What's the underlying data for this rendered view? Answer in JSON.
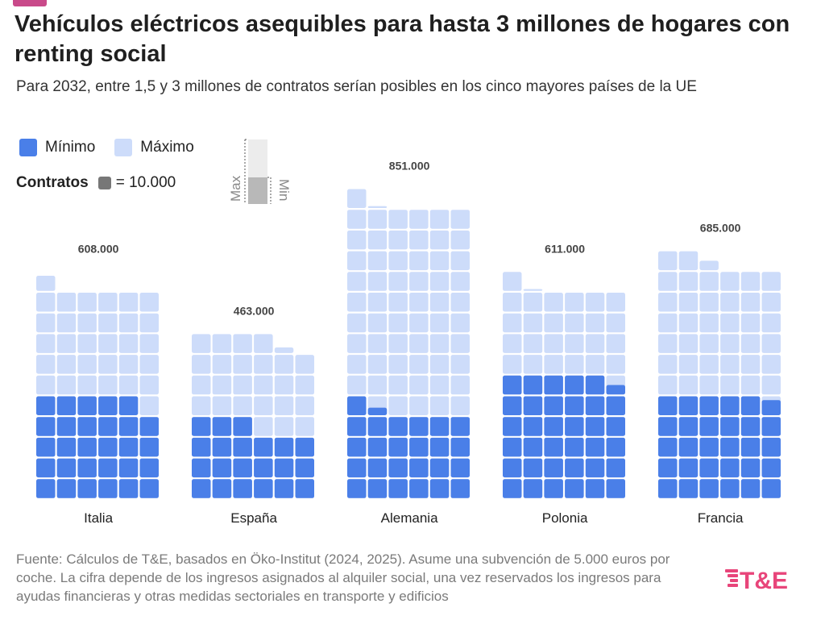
{
  "title": "Vehículos eléctricos asequibles para hasta 3 millones de hogares con renting social",
  "subtitle": "Para 2032, entre 1,5 y 3 millones de contratos serían posibles en los cinco mayores países de la UE",
  "legend": {
    "min_label": "Mínimo",
    "max_label": "Máximo"
  },
  "unit_note": {
    "label": "Contratos",
    "value": "= 10.000"
  },
  "key_labels": {
    "max": "Max",
    "min": "Min"
  },
  "source": "Fuente: Cálculos de T&E, basados en Öko-Institut (2024, 2025). Asume una subvención de 5.000 euros por coche. La cifra depende de los ingresos asignados al alquiler social, una vez reservados los ingresos para ayudas financieras y otras medidas sectoriales en transporte y edificios",
  "logo_text": "T&E",
  "colors": {
    "min": "#4a7fe8",
    "max": "#cddcfa",
    "accent": "#c94a8a",
    "logo": "#e8457a",
    "unit": "#777777"
  },
  "chart_data": {
    "type": "waffle",
    "unit": 10000,
    "categories": [
      "Italia",
      "España",
      "Alemania",
      "Polonia",
      "Francia"
    ],
    "series": [
      {
        "name": "Mínimo",
        "values": [
          290000,
          210000,
          254000,
          355000,
          298000
        ]
      },
      {
        "name": "Máximo",
        "values": [
          608000,
          463000,
          851000,
          611000,
          685000
        ]
      }
    ],
    "total_labels": [
      "608.000",
      "463.000",
      "851.000",
      "611.000",
      "685.000"
    ]
  }
}
